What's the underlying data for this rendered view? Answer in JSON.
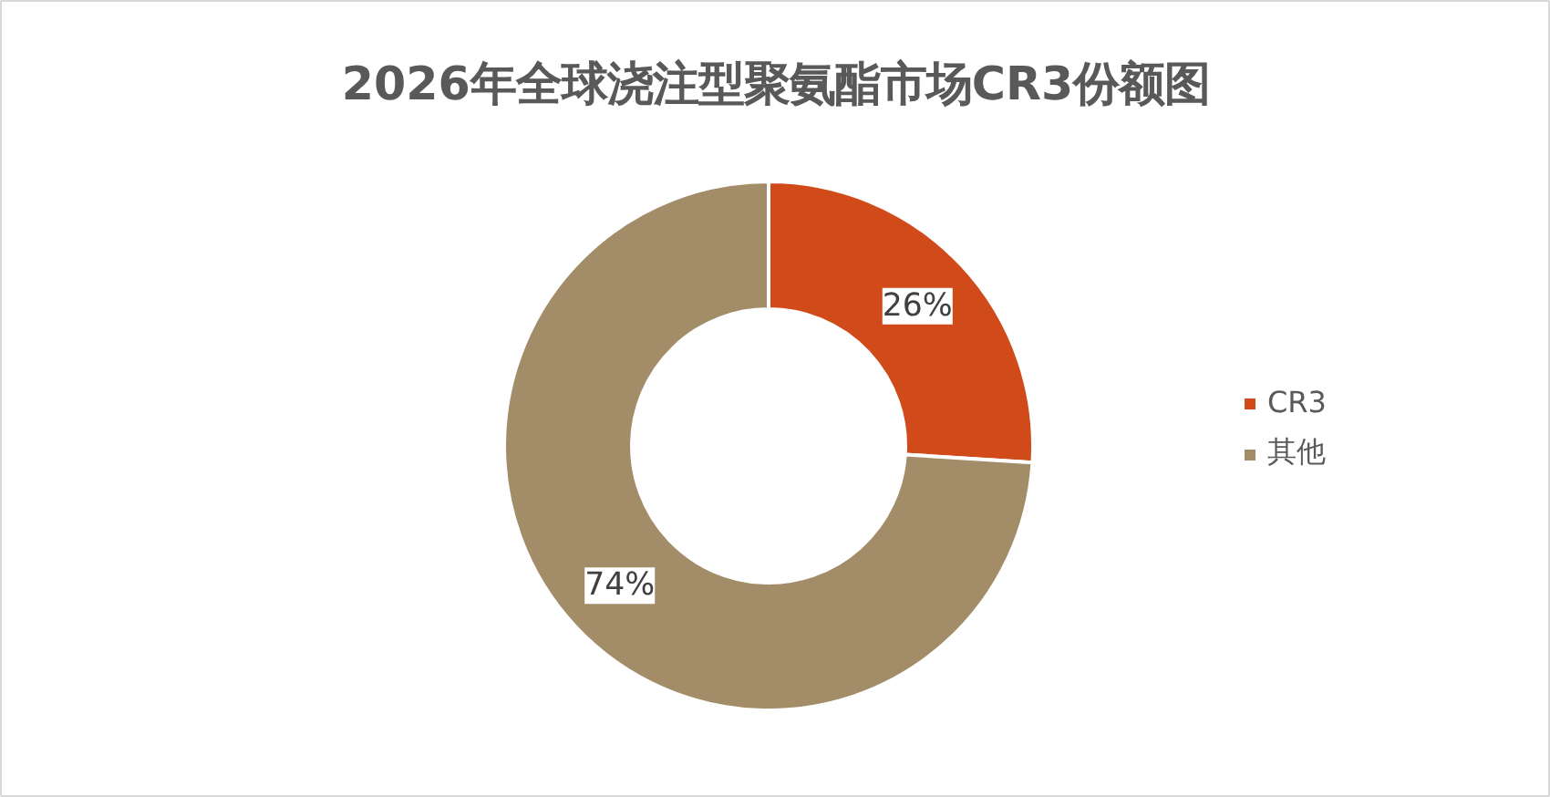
{
  "chart_data": {
    "type": "donut",
    "title": "2026年全球浇注型聚氨酯市场CR3份额图",
    "categories": [
      "CR3",
      "其他"
    ],
    "values": [
      26,
      74
    ],
    "colors": [
      "#d04a1a",
      "#a38d68"
    ],
    "value_labels": [
      "26%",
      "74%"
    ],
    "legend": "right"
  }
}
